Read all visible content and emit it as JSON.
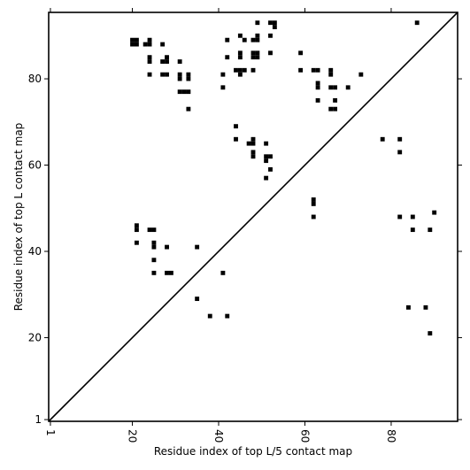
{
  "chart_data": {
    "type": "heatmap",
    "title": "",
    "xlabel": "Residue index of top L/5 contact map",
    "ylabel": "Residue index of top L contact map",
    "xlim": [
      1,
      95
    ],
    "ylim": [
      1,
      95
    ],
    "x_ticks": [
      1,
      20,
      40,
      60,
      80
    ],
    "y_ticks": [
      1,
      20,
      40,
      60,
      80
    ],
    "grid": false,
    "diagonal": true,
    "upper_triangle_contacts": [
      [
        20,
        88
      ],
      [
        20,
        89
      ],
      [
        21,
        88
      ],
      [
        21,
        89
      ],
      [
        23,
        88
      ],
      [
        24,
        88
      ],
      [
        24,
        89
      ],
      [
        24,
        84
      ],
      [
        24,
        85
      ],
      [
        24,
        81
      ],
      [
        27,
        88
      ],
      [
        27,
        84
      ],
      [
        28,
        84
      ],
      [
        28,
        85
      ],
      [
        27,
        81
      ],
      [
        28,
        81
      ],
      [
        31,
        84
      ],
      [
        31,
        80
      ],
      [
        31,
        81
      ],
      [
        33,
        80
      ],
      [
        33,
        81
      ],
      [
        31,
        77
      ],
      [
        32,
        77
      ],
      [
        33,
        77
      ],
      [
        33,
        73
      ],
      [
        42,
        89
      ],
      [
        41,
        81
      ],
      [
        42,
        85
      ],
      [
        41,
        78
      ],
      [
        45,
        90
      ],
      [
        46,
        89
      ],
      [
        45,
        86
      ],
      [
        45,
        85
      ],
      [
        44,
        82
      ],
      [
        45,
        82
      ],
      [
        45,
        81
      ],
      [
        46,
        82
      ],
      [
        48,
        89
      ],
      [
        49,
        89
      ],
      [
        49,
        90
      ],
      [
        48,
        86
      ],
      [
        49,
        86
      ],
      [
        48,
        85
      ],
      [
        49,
        85
      ],
      [
        48,
        82
      ],
      [
        49,
        93
      ],
      [
        52,
        93
      ],
      [
        53,
        93
      ],
      [
        53,
        92
      ],
      [
        52,
        90
      ],
      [
        52,
        86
      ],
      [
        59,
        86
      ],
      [
        59,
        82
      ],
      [
        62,
        82
      ],
      [
        63,
        82
      ],
      [
        63,
        79
      ],
      [
        63,
        78
      ],
      [
        66,
        82
      ],
      [
        66,
        81
      ],
      [
        63,
        75
      ],
      [
        66,
        78
      ],
      [
        67,
        78
      ],
      [
        67,
        75
      ],
      [
        70,
        78
      ],
      [
        73,
        81
      ],
      [
        66,
        73
      ],
      [
        67,
        73
      ],
      [
        86,
        93
      ],
      [
        44,
        69
      ],
      [
        44,
        66
      ],
      [
        47,
        65
      ],
      [
        48,
        65
      ],
      [
        48,
        66
      ],
      [
        48,
        63
      ],
      [
        48,
        62
      ],
      [
        51,
        65
      ],
      [
        51,
        62
      ],
      [
        52,
        62
      ],
      [
        51,
        61
      ],
      [
        52,
        59
      ],
      [
        51,
        57
      ],
      [
        78,
        66
      ],
      [
        82,
        66
      ],
      [
        82,
        63
      ],
      [
        62,
        52
      ],
      [
        62,
        51
      ],
      [
        62,
        48
      ]
    ],
    "lower_triangle_contacts": [
      [
        21,
        46
      ],
      [
        21,
        45
      ],
      [
        24,
        45
      ],
      [
        25,
        45
      ],
      [
        21,
        42
      ],
      [
        25,
        42
      ],
      [
        25,
        41
      ],
      [
        28,
        41
      ],
      [
        25,
        38
      ],
      [
        25,
        35
      ],
      [
        28,
        35
      ],
      [
        29,
        35
      ],
      [
        35,
        41
      ],
      [
        41,
        35
      ],
      [
        35,
        29
      ],
      [
        38,
        25
      ],
      [
        42,
        25
      ],
      [
        82,
        48
      ],
      [
        85,
        48
      ],
      [
        90,
        49
      ],
      [
        85,
        45
      ],
      [
        89,
        45
      ],
      [
        84,
        27
      ],
      [
        88,
        27
      ],
      [
        89,
        21
      ]
    ]
  }
}
